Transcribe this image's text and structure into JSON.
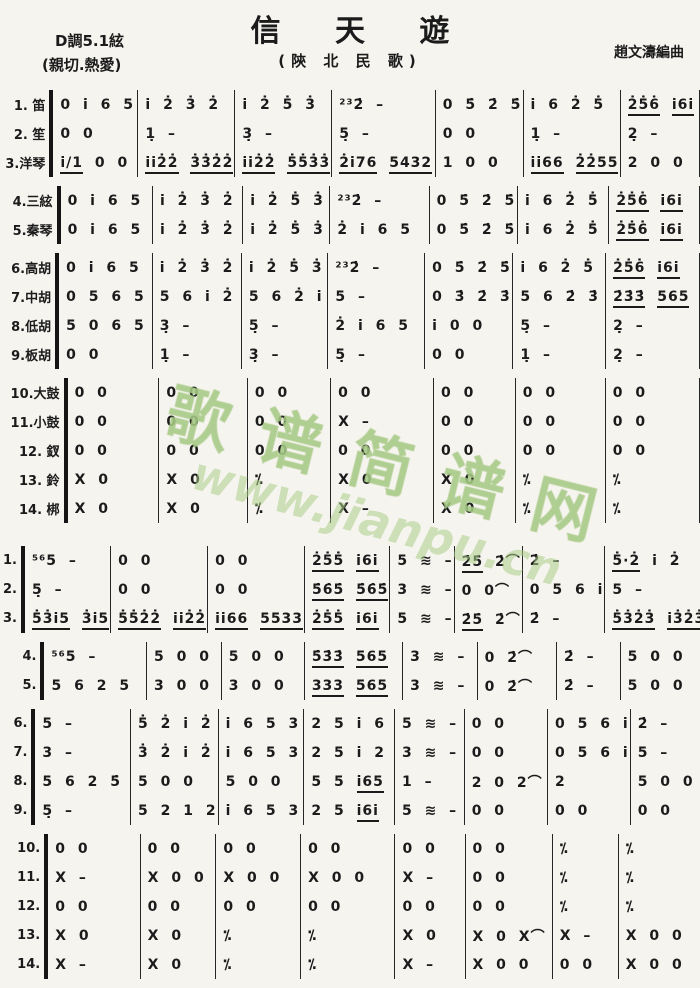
{
  "page": {
    "paper_color": "#f6f4ef",
    "ink_color": "#1b1b1b",
    "watermark_color": "#a8cc86"
  },
  "header": {
    "title": "信 天 遊",
    "subtitle": "(陝 北 民 歌)",
    "key_line": "D調5.1絃",
    "mood_line": "(親切.熱愛)",
    "arranger": "趙文濤編曲"
  },
  "watermark": {
    "site_name": "歌谱简谱网",
    "site_url": "www.jianpu.cn"
  },
  "system1": {
    "groups": [
      {
        "rows": [
          {
            "label": "1. 笛",
            "cells": [
              "0 i 6 5",
              "i 2̇ 3̇ 2̇",
              "i 2̇ 5̇ 3̇",
              "²³2̇ –",
              "0 5̇ 2̇ 5̇",
              "i 6 2̇ 5̇",
              "2̇5̇6̇ i6i"
            ]
          },
          {
            "label": "2. 笙",
            "cells": [
              "0 0",
              "1̣ –",
              "3̣ –",
              "5̣ –",
              "0 0",
              "1̣ –",
              "2̣ –"
            ]
          },
          {
            "label": "3.洋琴",
            "cells": [
              "i/1 0 0",
              "ii2̇2̇ 3̇3̇2̇2̇",
              "ii2̇2̇ 5̇5̇3̇3̇",
              "2̇i76 5432",
              "1 0 0",
              "ii66 2̇2̇55",
              "2 0 0"
            ]
          }
        ]
      },
      {
        "rows": [
          {
            "label": "4.三絃",
            "cells": [
              "0 i 6 5",
              "i 2̇ 3̇ 2̇",
              "i 2̇ 5̇ 3̇",
              "²³2̇ –",
              "0 5̇ 2̇ 5̇",
              "i 6 2̇ 5̇",
              "2̇5̇6̇ i6i"
            ]
          },
          {
            "label": "5.秦琴",
            "cells": [
              "0 i 6 5",
              "i 2̇ 3̇ 2̇",
              "i 2̇ 5̇ 3̇",
              "2̇ i 6 5",
              "0 5̇ 2̇ 5̇",
              "i 6 2̇ 5̇",
              "2̇5̇6̇ i6i"
            ]
          }
        ]
      },
      {
        "rows": [
          {
            "label": "6.高胡",
            "cells": [
              "0 i 6 5",
              "i 2̇ 3̇ 2̇",
              "i 2̇ 5̇ 3̇",
              "²³2̇ –",
              "0 5̇ 2̇ 5̇",
              "i 6 2̇ 5̇",
              "2̇5̇6̇ i6i"
            ]
          },
          {
            "label": "7.中胡",
            "cells": [
              "0 5 6 5",
              "5 6 i 2̇",
              "5 6 2̇ i",
              "5 –",
              "0 3̇ 2̇ 3̇",
              "5 6 2̇ 3̇",
              "2̇3̇3̇ 565"
            ]
          },
          {
            "label": "8.低胡",
            "cells": [
              "5 0 6 5",
              "3̣ –",
              "5̣ –",
              "2̇ i 6 5",
              "i 0 0",
              "5̣ –",
              "2̣ –"
            ]
          },
          {
            "label": "9.板胡",
            "cells": [
              "0 0",
              "1̣ –",
              "3̣ –",
              "5̣ –",
              "0 0",
              "1̣ –",
              "2̣ –"
            ]
          }
        ]
      },
      {
        "rows": [
          {
            "label": "10.大鼓",
            "cells": [
              "0 0",
              "0 0",
              "0 0",
              "0 0",
              "0 0",
              "0 0",
              "0 0"
            ]
          },
          {
            "label": "11.小鼓",
            "cells": [
              "0 0",
              "0 0",
              "0 0",
              "X –",
              "0 0",
              "0 0",
              "0 0"
            ]
          },
          {
            "label": "12. 釵",
            "cells": [
              "0 0",
              "0 0",
              "0 0",
              "0 0",
              "0 0",
              "0 0",
              "0 0"
            ]
          },
          {
            "label": "13. 鈴",
            "cells": [
              "X 0",
              "X 0",
              "⁒",
              "X 0",
              "X 0",
              "⁒",
              "⁒"
            ]
          },
          {
            "label": "14. 梆",
            "cells": [
              "X 0",
              "X 0",
              "⁒",
              "X –",
              "X 0",
              "⁒",
              "⁒"
            ]
          }
        ]
      }
    ]
  },
  "system2": {
    "groups": [
      {
        "rows": [
          {
            "label": "1.",
            "cells": [
              "⁵⁶5 –",
              "0 0",
              "0 0",
              "2̇5̇5̇ i6i",
              "5 ≋ –",
              "2̇5̇ 2̇⌒",
              "2̇ –",
              "5̇·2̇ i 2̇"
            ]
          },
          {
            "label": "2.",
            "cells": [
              "5̣ –",
              "0 0",
              "0 0",
              "5̇6̇5̇ 5̇6̇5̇",
              "3 ≋ –",
              "0 0⌒",
              "0 5 6 i",
              "5 –"
            ]
          },
          {
            "label": "3.",
            "cells": [
              "5̇3̇i5 3̇i5",
              "5̇5̇2̇2̇ ii2̇2̇",
              "ii66 5533",
              "2̇5̇5̇ i6i",
              "5 ≋ –",
              "2̇5̇ 2̇⌒",
              "2̇ –",
              "5̇3̇2̇3̇ i3̇2̇3̇"
            ]
          }
        ]
      },
      {
        "rows": [
          {
            "label": "4.",
            "cells": [
              "⁵⁶5 –",
              "5 0 0",
              "5 0 0",
              "5̇3̇3̇ 565",
              "3 ≋ –",
              "0 2̇⌒",
              "2̇ –",
              "5 0 0"
            ]
          },
          {
            "label": "5.",
            "cells": [
              "5 6 2 5",
              "3 0 0",
              "3 0 0",
              "333 565",
              "3 ≋ –",
              "0 2̇⌒",
              "2̇ –",
              "5 0 0"
            ]
          }
        ]
      },
      {
        "rows": [
          {
            "label": "6.",
            "cells": [
              "5 –",
              "5̇ 2̇ i 2̇",
              "i 6 5 3",
              "2 5 i 6",
              "5 ≋ –",
              "0 0",
              "0 5 6 i",
              "2̇ –"
            ]
          },
          {
            "label": "7.",
            "cells": [
              "3 –",
              "3̇ 2̇ i 2̇",
              "i 6 5 3",
              "2 5 i 2",
              "3 ≋ –",
              "0 0",
              "0 5 6 i",
              "5 –"
            ]
          },
          {
            "label": "8.",
            "cells": [
              "5 6 2 5̇",
              "5 0 0",
              "5 0 0",
              "5 5 i65",
              "1 –",
              "2 0 2⌒",
              "2",
              "5 0 0"
            ]
          },
          {
            "label": "9.",
            "cells": [
              "5̣ –",
              "5 2 1 2",
              "i 6 5 3",
              "2 5 i6i",
              "5 ≋ –",
              "0 0",
              "0 0",
              "0 0"
            ]
          }
        ]
      },
      {
        "rows": [
          {
            "label": "10.",
            "cells": [
              "0 0",
              "0 0",
              "0 0",
              "0 0",
              "0 0",
              "0 0",
              "⁒",
              "⁒"
            ]
          },
          {
            "label": "11.",
            "cells": [
              "X –",
              "X 0 0",
              "X 0 0",
              "X 0 0",
              "X –",
              "0 0",
              "⁒",
              "⁒"
            ]
          },
          {
            "label": "12.",
            "cells": [
              "0 0",
              "0 0",
              "0 0",
              "0 0",
              "0 0",
              "0 0",
              "⁒",
              "⁒"
            ]
          },
          {
            "label": "13.",
            "cells": [
              "X 0",
              "X 0",
              "⁒",
              "⁒",
              "X 0",
              "X 0 X⌒",
              "X –",
              "X 0 0"
            ]
          },
          {
            "label": "14.",
            "cells": [
              "X –",
              "X 0",
              "⁒",
              "⁒",
              "X –",
              "X 0 0",
              "0 0",
              "X 0 0"
            ]
          }
        ]
      }
    ]
  }
}
